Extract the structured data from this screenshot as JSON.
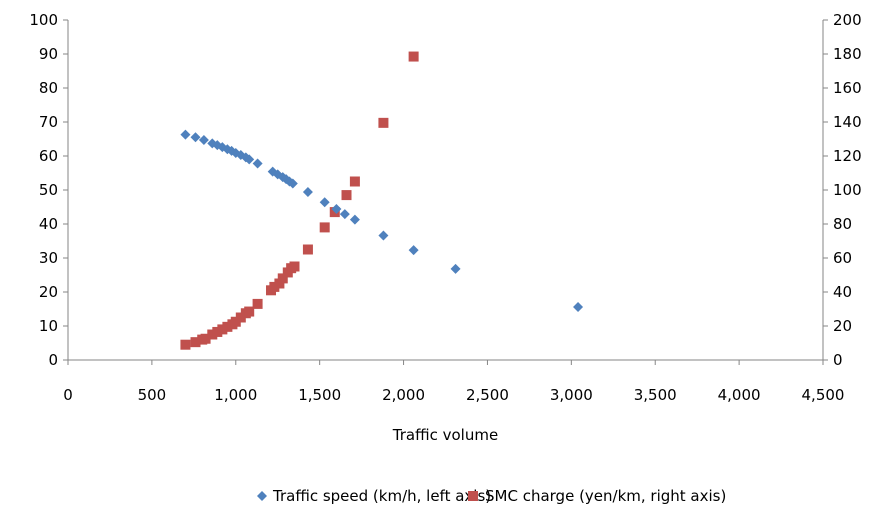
{
  "chart_data": {
    "type": "scatter",
    "xlabel": "Traffic volume",
    "xlim": [
      0,
      4500
    ],
    "x_ticks": [
      "0",
      "500",
      "1,000",
      "1,500",
      "2,000",
      "2,500",
      "3,000",
      "3,500",
      "4,000",
      "4,500"
    ],
    "x_tick_values": [
      0,
      500,
      1000,
      1500,
      2000,
      2500,
      3000,
      3500,
      4000,
      4500
    ],
    "ylim_left": [
      0,
      100
    ],
    "y_left_ticks": [
      "0",
      "10",
      "20",
      "30",
      "40",
      "50",
      "60",
      "70",
      "80",
      "90",
      "100"
    ],
    "ylim_right": [
      0,
      200
    ],
    "y_right_ticks": [
      "0",
      "20",
      "40",
      "60",
      "80",
      "100",
      "120",
      "140",
      "160",
      "180",
      "200"
    ],
    "grid": false,
    "legend_position": "bottom",
    "series": [
      {
        "name": "Traffic speed (km/h, left axis)",
        "axis": "left",
        "marker": "diamond",
        "color": "#4F81BD",
        "points": [
          [
            700,
            66.3
          ],
          [
            760,
            65.5
          ],
          [
            810,
            64.7
          ],
          [
            860,
            63.7
          ],
          [
            890,
            63.2
          ],
          [
            920,
            62.6
          ],
          [
            950,
            62.0
          ],
          [
            975,
            61.5
          ],
          [
            1000,
            60.9
          ],
          [
            1030,
            60.3
          ],
          [
            1060,
            59.6
          ],
          [
            1080,
            59.0
          ],
          [
            1130,
            57.8
          ],
          [
            1220,
            55.4
          ],
          [
            1250,
            54.6
          ],
          [
            1280,
            53.8
          ],
          [
            1300,
            53.2
          ],
          [
            1320,
            52.5
          ],
          [
            1340,
            51.9
          ],
          [
            1430,
            49.4
          ],
          [
            1530,
            46.4
          ],
          [
            1600,
            44.4
          ],
          [
            1650,
            42.9
          ],
          [
            1710,
            41.3
          ],
          [
            1880,
            36.6
          ],
          [
            2060,
            32.3
          ],
          [
            2310,
            26.8
          ],
          [
            3040,
            15.6
          ]
        ]
      },
      {
        "name": "SMC charge (yen/km, right axis)",
        "axis": "right",
        "marker": "square",
        "color": "#C0504D",
        "points": [
          [
            700,
            9.0
          ],
          [
            760,
            10.5
          ],
          [
            800,
            12.0
          ],
          [
            820,
            12.5
          ],
          [
            860,
            15.0
          ],
          [
            890,
            16.5
          ],
          [
            920,
            18.0
          ],
          [
            950,
            19.5
          ],
          [
            980,
            21.0
          ],
          [
            1000,
            22.5
          ],
          [
            1030,
            25.0
          ],
          [
            1060,
            27.5
          ],
          [
            1080,
            28.5
          ],
          [
            1130,
            33.0
          ],
          [
            1210,
            41.0
          ],
          [
            1230,
            43.0
          ],
          [
            1260,
            45.0
          ],
          [
            1280,
            48.0
          ],
          [
            1310,
            51.5
          ],
          [
            1330,
            54.0
          ],
          [
            1350,
            55.0
          ],
          [
            1430,
            65.0
          ],
          [
            1530,
            78.0
          ],
          [
            1590,
            87.0
          ],
          [
            1660,
            97.0
          ],
          [
            1710,
            105.0
          ],
          [
            1880,
            139.5
          ],
          [
            2060,
            178.5
          ]
        ]
      }
    ]
  }
}
